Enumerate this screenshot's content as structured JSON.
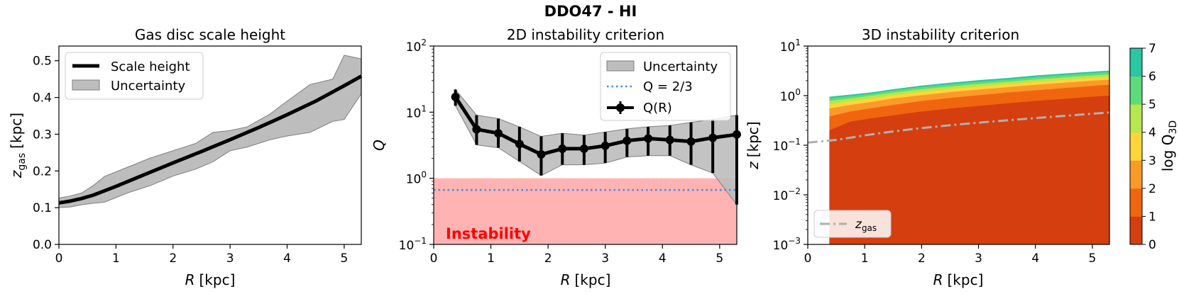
{
  "figure_title": "DDO47 - HI",
  "chart_data": [
    {
      "type": "line",
      "title": "Gas disc scale height",
      "xlabel_var": "R",
      "xlabel_unit": "[kpc]",
      "ylabel_var": "z",
      "ylabel_sub": "gas",
      "ylabel_unit": "[kpc]",
      "xlim": [
        0,
        5.3
      ],
      "ylim": [
        0,
        0.54
      ],
      "xticks": [
        0,
        1,
        2,
        3,
        4,
        5
      ],
      "xtick_labels": [
        "0",
        "1",
        "2",
        "3",
        "4",
        "5"
      ],
      "yticks": [
        0.0,
        0.1,
        0.2,
        0.3,
        0.4,
        0.5
      ],
      "ytick_labels": [
        "0.0",
        "0.1",
        "0.2",
        "0.3",
        "0.4",
        "0.5"
      ],
      "legend": [
        "Scale height",
        "Uncertainty"
      ],
      "legend_loc": "upper-left",
      "series": [
        {
          "name": "Scale height",
          "x": [
            0,
            0.2,
            0.4,
            0.6,
            0.8,
            1.0,
            1.5,
            2.0,
            2.5,
            3.0,
            3.5,
            4.0,
            4.5,
            5.0,
            5.3
          ],
          "y": [
            0.113,
            0.118,
            0.125,
            0.134,
            0.146,
            0.158,
            0.19,
            0.222,
            0.253,
            0.285,
            0.318,
            0.353,
            0.39,
            0.432,
            0.458
          ]
        }
      ],
      "band": {
        "name": "Uncertainty",
        "x": [
          0,
          0.2,
          0.4,
          0.6,
          0.8,
          1.2,
          1.6,
          2.0,
          2.4,
          2.7,
          3.0,
          3.3,
          3.7,
          4.0,
          4.4,
          4.8,
          5.0,
          5.3
        ],
        "upper": [
          0.126,
          0.132,
          0.14,
          0.16,
          0.185,
          0.21,
          0.235,
          0.255,
          0.275,
          0.305,
          0.31,
          0.32,
          0.355,
          0.39,
          0.435,
          0.45,
          0.515,
          0.505
        ],
        "lower": [
          0.1,
          0.102,
          0.108,
          0.112,
          0.115,
          0.14,
          0.16,
          0.186,
          0.205,
          0.225,
          0.255,
          0.265,
          0.285,
          0.295,
          0.305,
          0.335,
          0.34,
          0.41
        ]
      },
      "colors": {
        "line": "#000000",
        "band": "#bdbdbd",
        "band_edge": "#7f7f7f"
      }
    },
    {
      "type": "line",
      "title": "2D instability criterion",
      "xlabel_var": "R",
      "xlabel_unit": "[kpc]",
      "ylabel_var": "Q",
      "yscale": "log",
      "xlim": [
        0,
        5.3
      ],
      "ylim": [
        0.1,
        100
      ],
      "xticks": [
        0,
        1,
        2,
        3,
        4,
        5
      ],
      "xtick_labels": [
        "0",
        "1",
        "2",
        "3",
        "4",
        "5"
      ],
      "yticks": [
        0.1,
        1,
        10,
        100
      ],
      "ytick_labels": [
        {
          "base": "10",
          "exp": "−1"
        },
        {
          "base": "10",
          "exp": "0"
        },
        {
          "base": "10",
          "exp": "1"
        },
        {
          "base": "10",
          "exp": "2"
        }
      ],
      "legend": [
        "Uncertainty",
        "Q = 2/3",
        "Q(R)"
      ],
      "legend_loc": "upper-right",
      "annotation": "Instability",
      "instability_region": [
        0.1,
        1.0
      ],
      "threshold": 0.6667,
      "series": [
        {
          "name": "Q(R)",
          "x": [
            0.38,
            0.75,
            1.13,
            1.5,
            1.88,
            2.25,
            2.63,
            3.0,
            3.38,
            3.75,
            4.13,
            4.5,
            4.88,
            5.3
          ],
          "y": [
            17,
            5.5,
            4.8,
            3.3,
            2.3,
            2.8,
            2.8,
            3.1,
            3.7,
            4.0,
            3.8,
            3.6,
            4.1,
            4.6
          ],
          "err_low": [
            12.5,
            3.2,
            2.9,
            1.8,
            1.1,
            1.6,
            1.6,
            1.7,
            2.1,
            2.2,
            2.2,
            1.6,
            1.2,
            0.4
          ],
          "err_high": [
            22,
            9.0,
            8.0,
            6.0,
            4.3,
            4.8,
            4.5,
            5.0,
            5.6,
            6.0,
            6.3,
            7.0,
            7.8,
            9.0
          ]
        }
      ],
      "colors": {
        "points": "#000000",
        "band": "#bdbdbd",
        "threshold": "#3b8eea",
        "instability": "#ffb3b3",
        "annotation": "#ff0000"
      }
    },
    {
      "type": "heatmap",
      "title": "3D instability criterion",
      "xlabel_var": "R",
      "xlabel_unit": "[kpc]",
      "ylabel_var": "z",
      "ylabel_unit": "[kpc]",
      "yscale": "log",
      "xlim": [
        0,
        5.3
      ],
      "ylim": [
        0.001,
        10
      ],
      "xticks": [
        0,
        1,
        2,
        3,
        4,
        5
      ],
      "xtick_labels": [
        "0",
        "1",
        "2",
        "3",
        "4",
        "5"
      ],
      "yticks": [
        0.001,
        0.01,
        0.1,
        1,
        10
      ],
      "ytick_labels": [
        {
          "base": "10",
          "exp": "−3"
        },
        {
          "base": "10",
          "exp": "−2"
        },
        {
          "base": "10",
          "exp": "−1"
        },
        {
          "base": "10",
          "exp": "0"
        },
        {
          "base": "10",
          "exp": "1"
        }
      ],
      "x_start": 0.38,
      "level_boundaries": {
        "x": [
          0.38,
          0.75,
          1.13,
          1.5,
          2.0,
          2.5,
          3.0,
          3.5,
          4.0,
          4.5,
          5.0,
          5.3
        ],
        "z1": [
          0.2,
          0.3,
          0.35,
          0.4,
          0.48,
          0.55,
          0.62,
          0.7,
          0.78,
          0.86,
          0.95,
          1.0
        ],
        "z2": [
          0.38,
          0.48,
          0.56,
          0.65,
          0.78,
          0.9,
          1.02,
          1.15,
          1.28,
          1.42,
          1.57,
          1.65
        ],
        "z3": [
          0.55,
          0.65,
          0.75,
          0.88,
          1.02,
          1.18,
          1.32,
          1.48,
          1.65,
          1.82,
          2.0,
          2.1
        ],
        "z4": [
          0.67,
          0.77,
          0.88,
          1.02,
          1.2,
          1.37,
          1.53,
          1.7,
          1.9,
          2.08,
          2.28,
          2.4
        ],
        "z5": [
          0.78,
          0.88,
          1.0,
          1.15,
          1.35,
          1.53,
          1.72,
          1.9,
          2.12,
          2.33,
          2.55,
          2.68
        ],
        "z6": [
          0.88,
          0.98,
          1.1,
          1.27,
          1.5,
          1.7,
          1.9,
          2.1,
          2.35,
          2.6,
          2.85,
          3.0
        ],
        "z7": [
          0.95,
          1.05,
          1.17,
          1.35,
          1.6,
          1.82,
          2.05,
          2.27,
          2.55,
          2.8,
          3.05,
          3.2
        ]
      },
      "legend": [
        "z_gas"
      ],
      "legend_label_var": "z",
      "legend_label_sub": "gas",
      "legend_loc": "lower-left",
      "zgas_line": {
        "x": [
          0,
          0.5,
          1.0,
          1.5,
          2.0,
          2.5,
          3.0,
          3.5,
          4.0,
          4.5,
          5.0,
          5.3
        ],
        "y": [
          0.113,
          0.128,
          0.158,
          0.19,
          0.222,
          0.253,
          0.285,
          0.318,
          0.353,
          0.39,
          0.432,
          0.458
        ]
      },
      "colorbar": {
        "label_text": "log Q",
        "label_sub": "3D",
        "range": [
          0,
          7
        ],
        "ticks": [
          "0",
          "1",
          "2",
          "3",
          "4",
          "5",
          "6",
          "7"
        ],
        "level_colors": [
          "#d53e0f",
          "#f0660f",
          "#fb9a29",
          "#fdd63a",
          "#b6e74c",
          "#5fdb7a",
          "#29c7a3"
        ]
      }
    }
  ]
}
